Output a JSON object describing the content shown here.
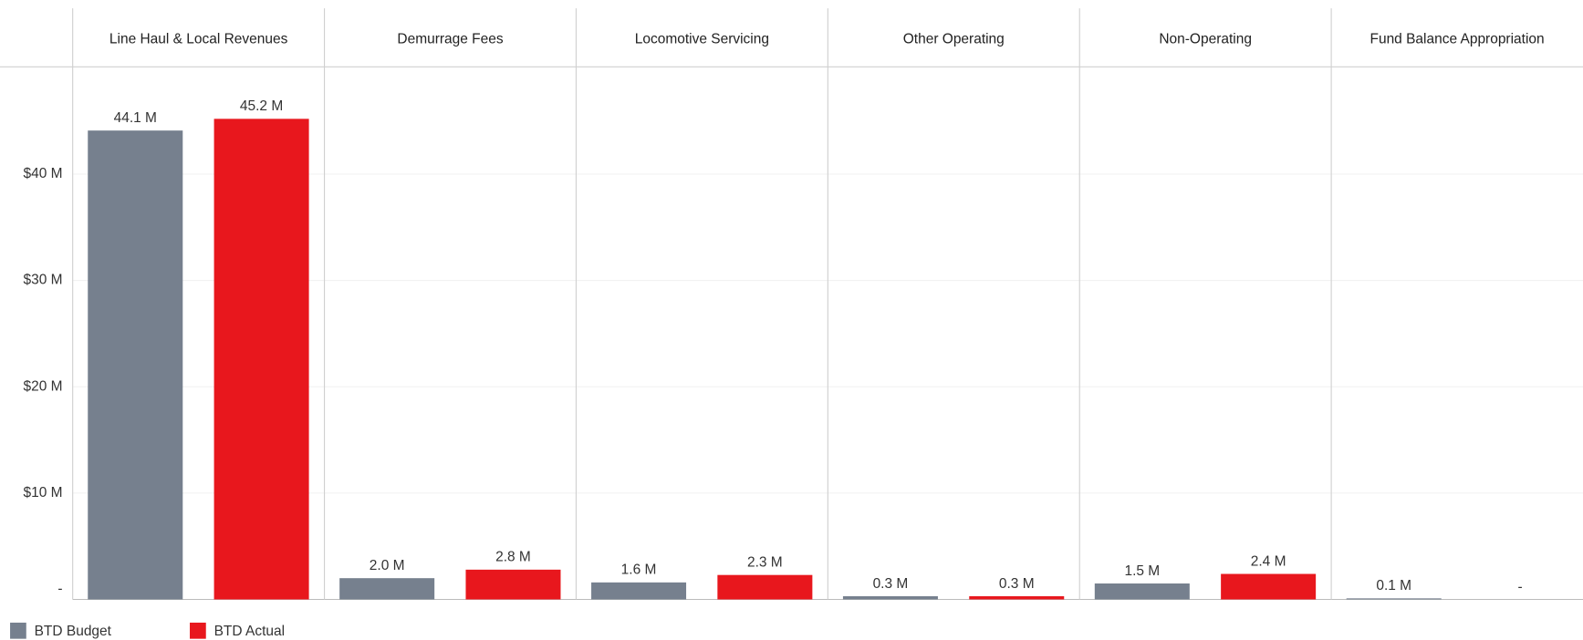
{
  "chart_data": {
    "type": "bar",
    "categories": [
      "Line Haul & Local Revenues",
      "Demurrage Fees",
      "Locomotive Servicing",
      "Other Operating",
      "Non-Operating",
      "Fund Balance Appropriation"
    ],
    "series": [
      {
        "name": "BTD Budget",
        "color": "#76808e",
        "values": [
          44.1,
          2.0,
          1.6,
          0.3,
          1.5,
          0.1
        ],
        "value_labels": [
          "44.1 M",
          "2.0 M",
          "1.6 M",
          "0.3 M",
          "1.5 M",
          "0.1 M"
        ]
      },
      {
        "name": "BTD Actual",
        "color": "#e8171d",
        "values": [
          45.2,
          2.8,
          2.3,
          0.3,
          2.4,
          0
        ],
        "value_labels": [
          "45.2 M",
          "2.8 M",
          "2.3 M",
          "0.3 M",
          "2.4 M",
          "-"
        ]
      }
    ],
    "ylim": [
      0,
      50
    ],
    "yticks": [
      {
        "value": 0,
        "label": "-"
      },
      {
        "value": 10,
        "label": "$10 M"
      },
      {
        "value": 20,
        "label": "$20 M"
      },
      {
        "value": 30,
        "label": "$30 M"
      },
      {
        "value": 40,
        "label": "$40 M"
      }
    ],
    "grid": true
  }
}
